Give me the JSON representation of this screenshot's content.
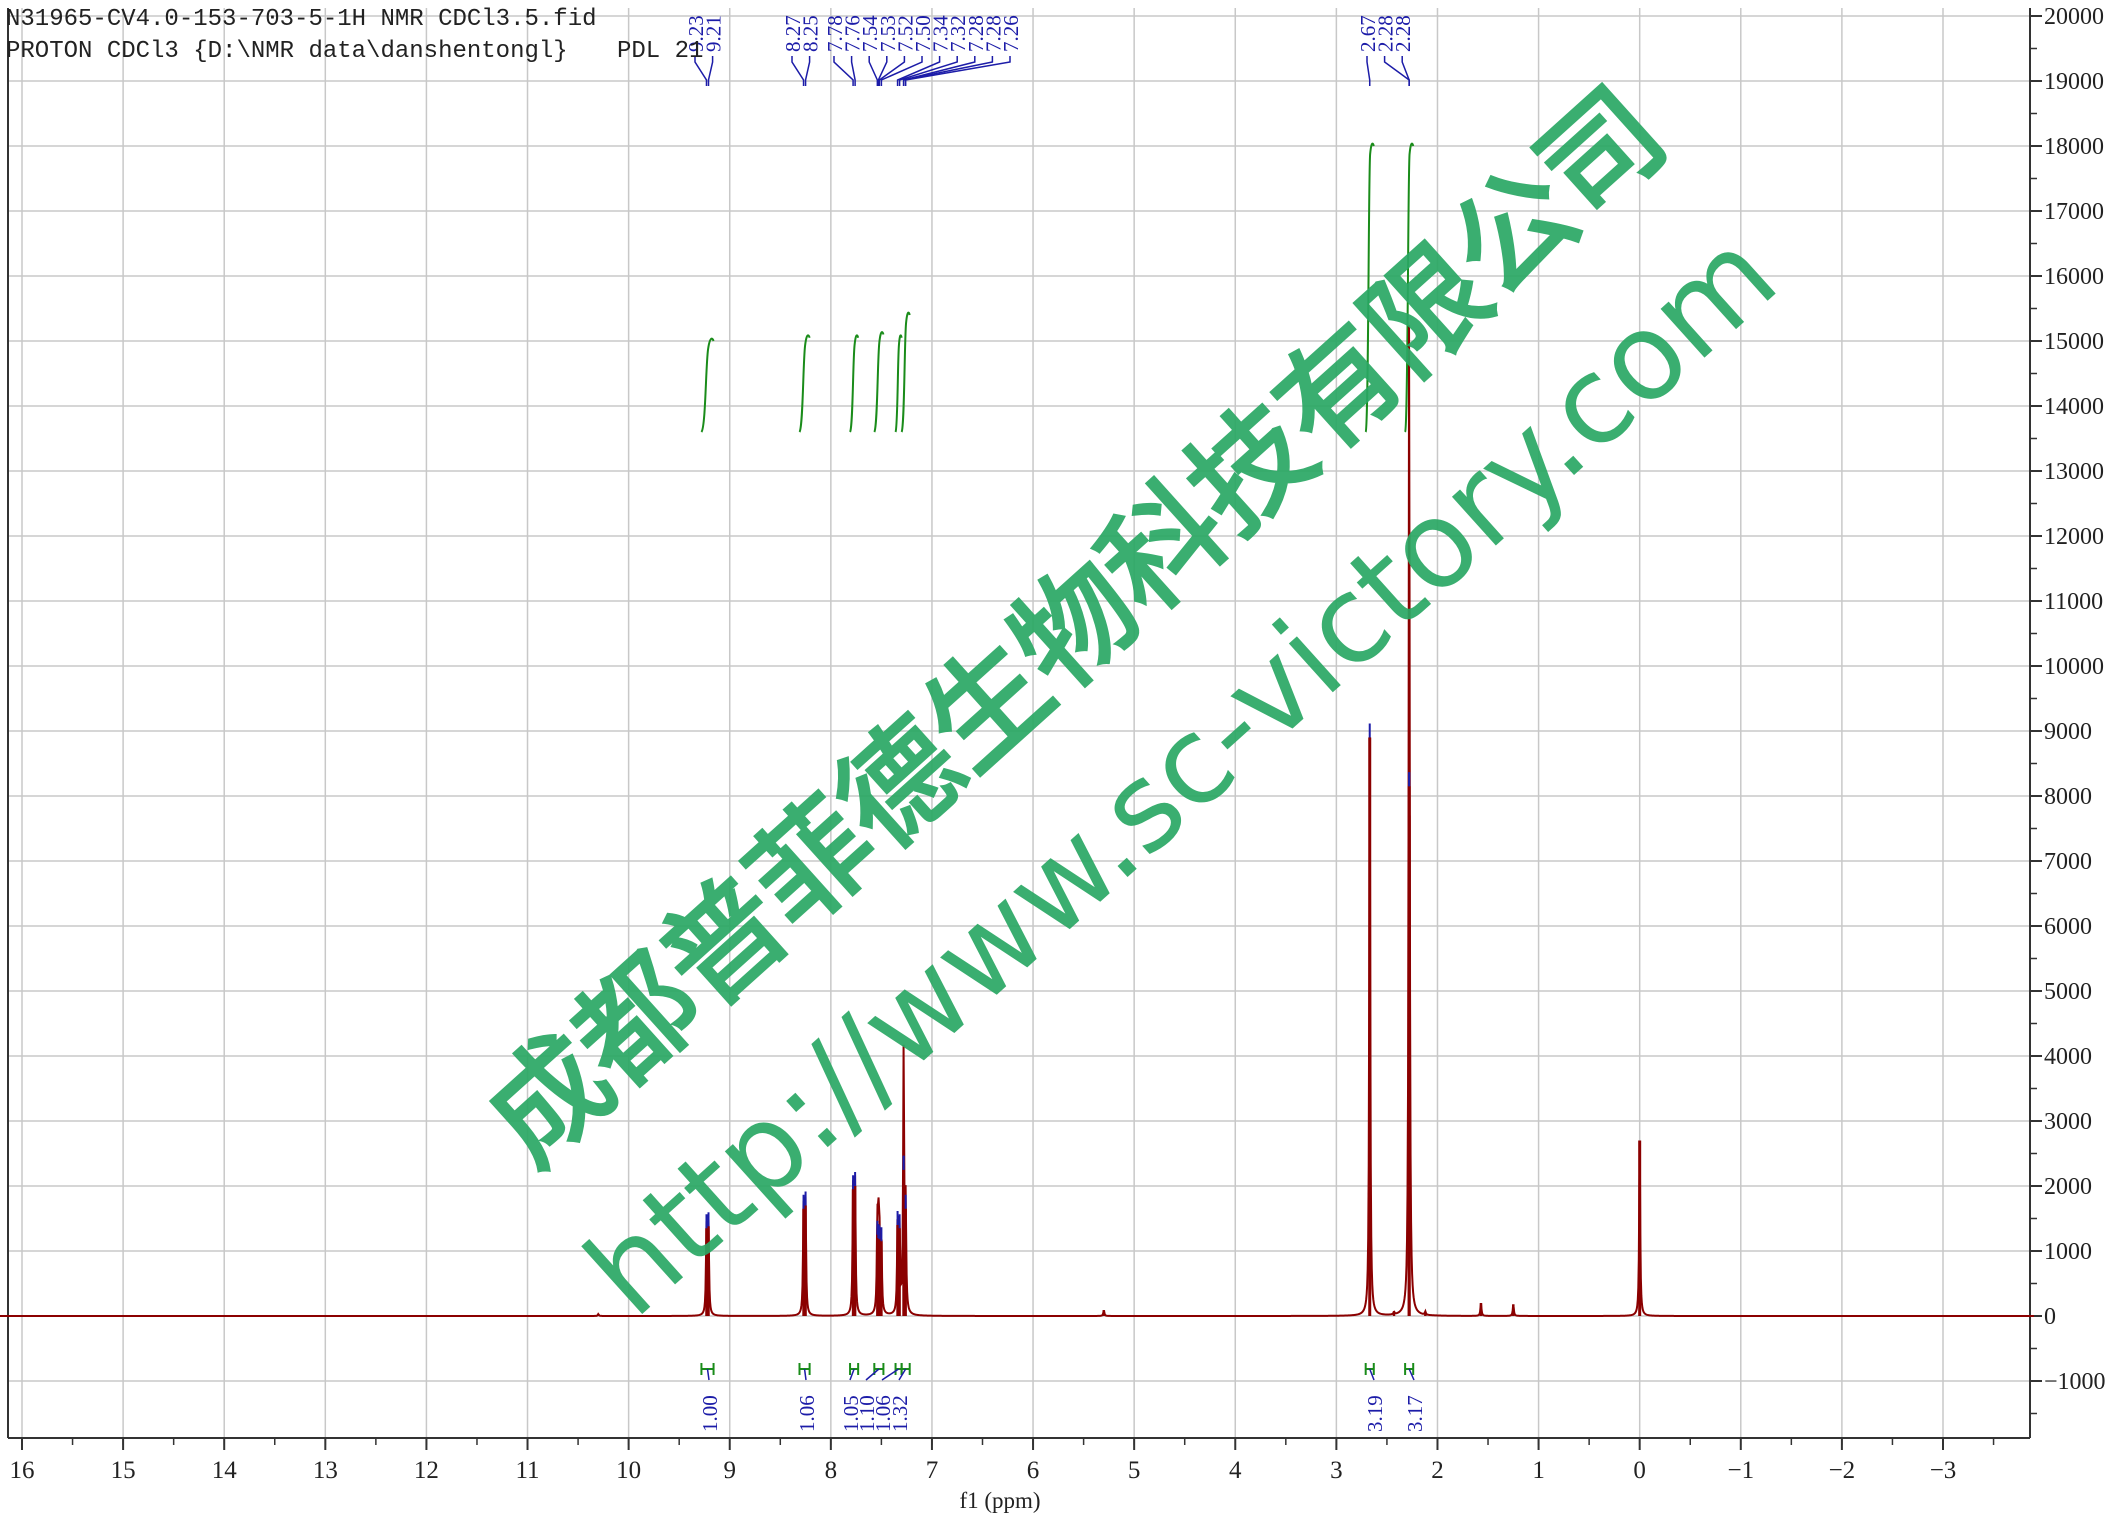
{
  "header": {
    "line1": "N31965-CV4.0-153-703-5-1H NMR CDCl3.5.fid",
    "line2": "PROTON CDCl3 {D:\\NMR data\\danshentongl}",
    "line3": "PDL 21"
  },
  "watermark": {
    "line1": "成都普菲德生物科技有限公司",
    "line2": "http://www.sc-victory.com",
    "color": "#2aa864"
  },
  "colors": {
    "spectrum": "#8b0000",
    "peak_marker": "#1c1ca8",
    "integral_curve": "#1a8c1a",
    "integral_label": "#1c1ca8",
    "grid": "#c8c8c8",
    "axis": "#333333"
  },
  "chart_data": {
    "type": "line",
    "title": "",
    "xlabel": "f1 (ppm)",
    "ylabel": "",
    "xlim": [
      16.3,
      -3.9
    ],
    "ylim": [
      -1900,
      20200
    ],
    "x_ticks": [
      16,
      15,
      14,
      13,
      12,
      11,
      10,
      9,
      8,
      7,
      6,
      5,
      4,
      3,
      2,
      1,
      0,
      -1,
      -2,
      -3
    ],
    "x_tick_labels": [
      "16",
      "15",
      "14",
      "13",
      "12",
      "11",
      "10",
      "9",
      "8",
      "7",
      "6",
      "5",
      "4",
      "3",
      "2",
      "1",
      "0",
      "−1",
      "−2",
      "−3"
    ],
    "y_ticks": [
      20000,
      19000,
      18000,
      17000,
      16000,
      15000,
      14000,
      13000,
      12000,
      11000,
      10000,
      9000,
      8000,
      7000,
      6000,
      5000,
      4000,
      3000,
      2000,
      1000,
      0,
      -1000
    ],
    "y_tick_labels": [
      "20000",
      "19000",
      "18000",
      "17000",
      "16000",
      "15000",
      "14000",
      "13000",
      "12000",
      "11000",
      "10000",
      "9000",
      "8000",
      "7000",
      "6000",
      "5000",
      "4000",
      "3000",
      "2000",
      "1000",
      "0",
      "−1000"
    ],
    "y_axis_side": "right",
    "grid": true,
    "peaks": [
      {
        "ppm": 9.23,
        "height": 1350
      },
      {
        "ppm": 9.21,
        "height": 1380
      },
      {
        "ppm": 8.27,
        "height": 1650
      },
      {
        "ppm": 8.25,
        "height": 1700
      },
      {
        "ppm": 7.78,
        "height": 1950
      },
      {
        "ppm": 7.76,
        "height": 2000
      },
      {
        "ppm": 7.54,
        "height": 1250
      },
      {
        "ppm": 7.53,
        "height": 1200
      },
      {
        "ppm": 7.52,
        "height": 1180
      },
      {
        "ppm": 7.5,
        "height": 1150
      },
      {
        "ppm": 7.34,
        "height": 1400
      },
      {
        "ppm": 7.32,
        "height": 1350
      },
      {
        "ppm": 7.28,
        "height": 1800
      },
      {
        "ppm": 7.28,
        "height": 2250
      },
      {
        "ppm": 7.26,
        "height": 1650
      },
      {
        "ppm": 2.67,
        "height": 8900
      },
      {
        "ppm": 2.28,
        "height": 8150
      },
      {
        "ppm": 2.28,
        "height": 7700
      },
      {
        "ppm": 0.0,
        "height": 2700
      },
      {
        "ppm": 1.57,
        "height": 200
      },
      {
        "ppm": 1.25,
        "height": 180
      },
      {
        "ppm": 5.3,
        "height": 90
      },
      {
        "ppm": 10.3,
        "height": 30
      },
      {
        "ppm": 2.43,
        "height": 40
      },
      {
        "ppm": 2.12,
        "height": 50
      }
    ],
    "peak_labels": [
      {
        "text": "9.23",
        "ppm": 9.23
      },
      {
        "text": "9.21",
        "ppm": 9.21
      },
      {
        "text": "8.27",
        "ppm": 8.27
      },
      {
        "text": "8.25",
        "ppm": 8.25
      },
      {
        "text": "7.78",
        "ppm": 7.78
      },
      {
        "text": "7.76",
        "ppm": 7.76
      },
      {
        "text": "7.54",
        "ppm": 7.54
      },
      {
        "text": "7.53",
        "ppm": 7.53
      },
      {
        "text": "7.52",
        "ppm": 7.52
      },
      {
        "text": "7.50",
        "ppm": 7.5
      },
      {
        "text": "7.34",
        "ppm": 7.34
      },
      {
        "text": "7.32",
        "ppm": 7.32
      },
      {
        "text": "7.28",
        "ppm": 7.28
      },
      {
        "text": "7.28",
        "ppm": 7.28
      },
      {
        "text": "7.26",
        "ppm": 7.26
      },
      {
        "text": "2.67",
        "ppm": 2.67
      },
      {
        "text": "2.28",
        "ppm": 2.28
      },
      {
        "text": "2.28",
        "ppm": 2.28
      }
    ],
    "integrals": [
      {
        "label": "1.00",
        "from": 9.28,
        "to": 9.16,
        "curve_start": 13600,
        "curve_end": 15000
      },
      {
        "label": "1.06",
        "from": 8.31,
        "to": 8.21,
        "curve_start": 13600,
        "curve_end": 15050
      },
      {
        "label": "1.05",
        "from": 7.81,
        "to": 7.73,
        "curve_start": 13600,
        "curve_end": 15050
      },
      {
        "label": "1.10",
        "from": 7.57,
        "to": 7.48,
        "curve_start": 13600,
        "curve_end": 15100
      },
      {
        "label": "1.06",
        "from": 7.36,
        "to": 7.3,
        "curve_start": 13600,
        "curve_end": 15050
      },
      {
        "label": "1.32",
        "from": 7.3,
        "to": 7.22,
        "curve_start": 13600,
        "curve_end": 15400
      },
      {
        "label": "3.19",
        "from": 2.71,
        "to": 2.63,
        "curve_start": 13600,
        "curve_end": 18000
      },
      {
        "label": "3.17",
        "from": 2.32,
        "to": 2.24,
        "curve_start": 13600,
        "curve_end": 18000
      }
    ]
  }
}
